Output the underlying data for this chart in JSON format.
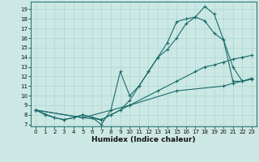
{
  "xlabel": "Humidex (Indice chaleur)",
  "bg_color": "#cce8e4",
  "line_color": "#1a6b6b",
  "grid_color": "#aad8d4",
  "xlim": [
    -0.5,
    23.5
  ],
  "ylim": [
    6.8,
    19.8
  ],
  "xticks": [
    0,
    1,
    2,
    3,
    4,
    5,
    6,
    7,
    8,
    9,
    10,
    11,
    12,
    13,
    14,
    15,
    16,
    17,
    18,
    19,
    20,
    21,
    22,
    23
  ],
  "yticks": [
    7,
    8,
    9,
    10,
    11,
    12,
    13,
    14,
    15,
    16,
    17,
    18,
    19
  ],
  "lines": [
    {
      "x": [
        0,
        1,
        2,
        3,
        4,
        5,
        6,
        7,
        8,
        9,
        10,
        11,
        12,
        13,
        14,
        15,
        16,
        17,
        18,
        19,
        20,
        21,
        22,
        23
      ],
      "y": [
        8.5,
        8.0,
        7.7,
        7.5,
        7.7,
        8.0,
        7.7,
        7.0,
        8.5,
        12.5,
        10.0,
        11.0,
        12.5,
        14.0,
        14.8,
        16.0,
        17.5,
        18.2,
        19.3,
        18.5,
        15.8,
        11.5,
        11.5,
        11.8
      ]
    },
    {
      "x": [
        0,
        2,
        3,
        4,
        5,
        7,
        8,
        9,
        10,
        11,
        12,
        13,
        14,
        15,
        16,
        17,
        18,
        19,
        20,
        21,
        22,
        23
      ],
      "y": [
        8.5,
        7.7,
        7.5,
        7.7,
        8.0,
        7.5,
        8.0,
        8.5,
        9.5,
        11.0,
        12.5,
        14.0,
        15.5,
        17.7,
        18.0,
        18.2,
        17.8,
        16.5,
        15.8,
        13.0,
        11.5,
        11.8
      ]
    },
    {
      "x": [
        0,
        5,
        7,
        10,
        13,
        15,
        17,
        18,
        19,
        20,
        21,
        22,
        23
      ],
      "y": [
        8.5,
        7.7,
        7.5,
        9.0,
        10.5,
        11.5,
        12.5,
        13.0,
        13.2,
        13.5,
        13.8,
        14.0,
        14.2
      ]
    },
    {
      "x": [
        0,
        5,
        10,
        15,
        20,
        21,
        22,
        23
      ],
      "y": [
        8.5,
        7.7,
        9.0,
        10.5,
        11.0,
        11.3,
        11.5,
        11.7
      ]
    }
  ]
}
